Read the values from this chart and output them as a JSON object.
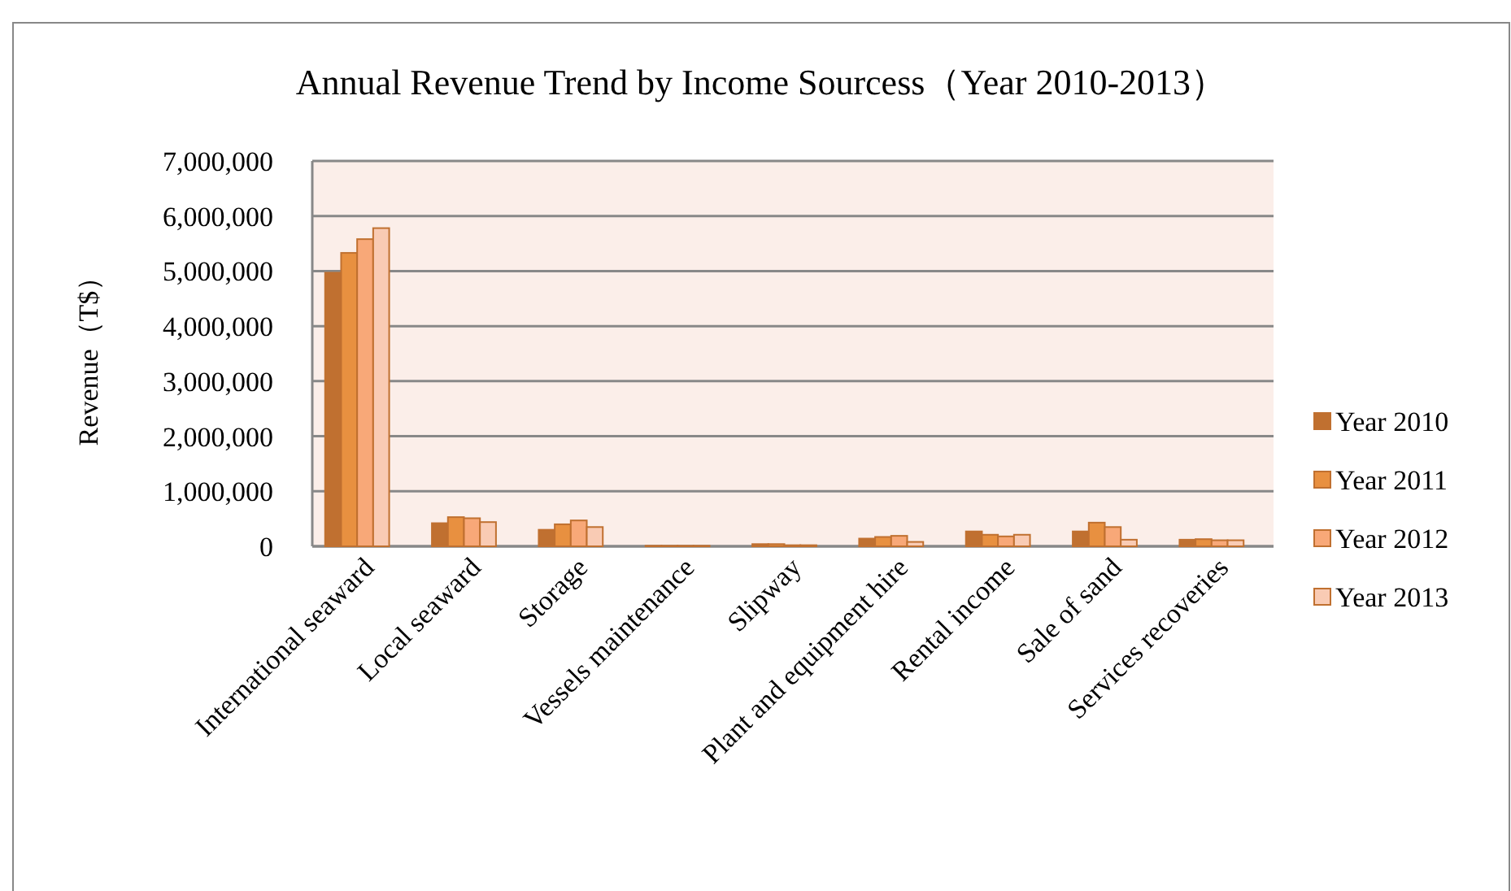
{
  "chart_data": {
    "type": "bar",
    "title": "Annual Revenue Trend by Income Sourcess（Year 2010-2013）",
    "ylabel": "Revenue（T$）",
    "categories": [
      "International seaward",
      "Local seaward",
      "Storage",
      "Vessels maintenance",
      "Slipway",
      "Plant and equipment hire",
      "Rental income",
      "Sale of sand",
      "Services recoveries"
    ],
    "series": [
      {
        "name": "Year 2010",
        "color": "#c07030",
        "values": [
          4970000,
          420000,
          300000,
          10000,
          40000,
          140000,
          270000,
          270000,
          120000
        ]
      },
      {
        "name": "Year 2011",
        "color": "#e89040",
        "values": [
          5330000,
          530000,
          400000,
          10000,
          40000,
          170000,
          210000,
          430000,
          130000
        ]
      },
      {
        "name": "Year 2012",
        "color": "#f8a878",
        "values": [
          5580000,
          510000,
          470000,
          10000,
          20000,
          190000,
          180000,
          350000,
          110000
        ]
      },
      {
        "name": "Year 2013",
        "color": "#f9cbb4",
        "values": [
          5780000,
          440000,
          350000,
          10000,
          20000,
          80000,
          210000,
          120000,
          110000
        ]
      }
    ],
    "ylim": [
      0,
      7000000
    ],
    "yticks": [
      {
        "value": 0,
        "label": "0"
      },
      {
        "value": 1000000,
        "label": "1,000,000"
      },
      {
        "value": 2000000,
        "label": "2,000,000"
      },
      {
        "value": 3000000,
        "label": "3,000,000"
      },
      {
        "value": 4000000,
        "label": "4,000,000"
      },
      {
        "value": 5000000,
        "label": "5,000,000"
      },
      {
        "value": 6000000,
        "label": "6,000,000"
      },
      {
        "value": 7000000,
        "label": "7,000,000"
      }
    ],
    "grid": "y",
    "legend": "right"
  }
}
